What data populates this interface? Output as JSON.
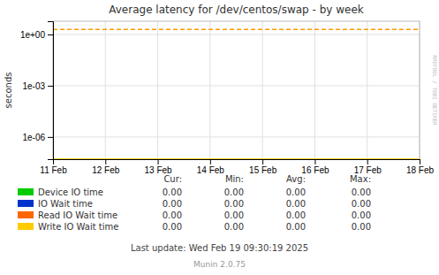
{
  "chart_data": {
    "type": "line",
    "title": "Average latency for /dev/centos/swap - by week",
    "y_label": "seconds",
    "log": "y",
    "grid": true,
    "xlim": [
      0,
      7
    ],
    "xticks": [
      {
        "value": 0,
        "label": "11 Feb"
      },
      {
        "value": 1,
        "label": "12 Feb"
      },
      {
        "value": 2,
        "label": "13 Feb"
      },
      {
        "value": 3,
        "label": "14 Feb"
      },
      {
        "value": 4,
        "label": "15 Feb"
      },
      {
        "value": 5,
        "label": "16 Feb"
      },
      {
        "value": 6,
        "label": "17 Feb"
      },
      {
        "value": 7,
        "label": "18 Feb"
      }
    ],
    "ylim": [
      5e-08,
      6
    ],
    "yticks": [
      {
        "value": 1e-06,
        "label": "1e-06"
      },
      {
        "value": 0.001,
        "label": "1e-03"
      },
      {
        "value": 1,
        "label": "1e+00"
      }
    ],
    "hlines": [
      {
        "value": 2.0,
        "color": "#ff9900",
        "line_style": "dashed"
      },
      {
        "value": 5e-08,
        "color": "#ffcc00",
        "line_style": "solid"
      }
    ],
    "series": [
      {
        "name": "Device IO time",
        "color": "#00cc00"
      },
      {
        "name": "IO Wait time",
        "color": "#0033cc"
      },
      {
        "name": "Read IO Wait time",
        "color": "#ff6600"
      },
      {
        "name": "Write IO Wait time",
        "color": "#ffcc00"
      }
    ],
    "legend_table": {
      "headers": [
        "Cur:",
        "Min:",
        "Avg:",
        "Max:"
      ],
      "rows": [
        [
          "0.00",
          "0.00",
          "0.00",
          "0.00"
        ],
        [
          "0.00",
          "0.00",
          "0.00",
          "0.00"
        ],
        [
          "0.00",
          "0.00",
          "0.00",
          "0.00"
        ],
        [
          "0.00",
          "0.00",
          "0.00",
          "0.00"
        ]
      ]
    },
    "watermark": "RRDTOOL / TOBI OETIKER",
    "footer": [
      "Last update: Wed Feb 19 09:30:19 2025",
      "Munin 2.0.75"
    ]
  }
}
